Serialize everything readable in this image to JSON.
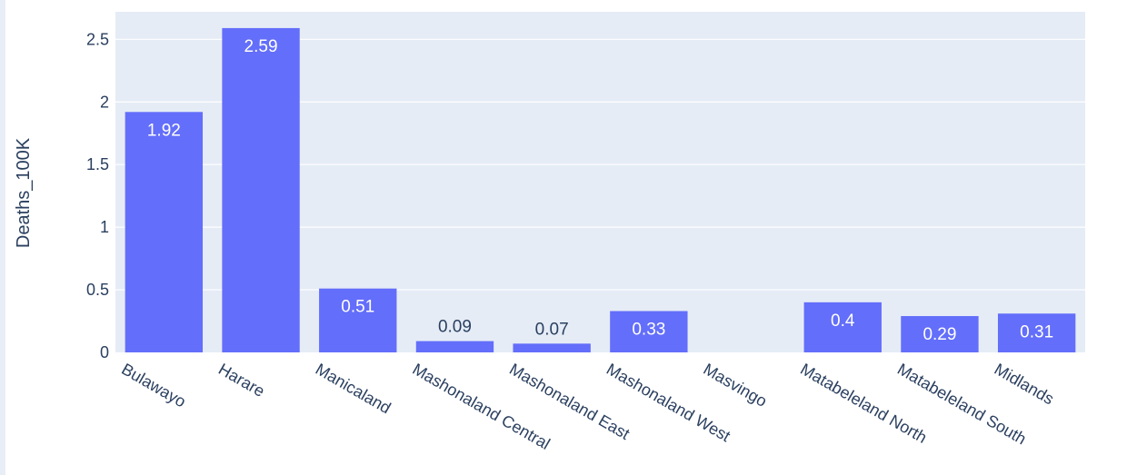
{
  "chart_data": {
    "type": "bar",
    "categories": [
      "Bulawayo",
      "Harare",
      "Manicaland",
      "Mashonaland Central",
      "Mashonaland East",
      "Mashonaland West",
      "Masvingo",
      "Matabeleland North",
      "Matabeleland South",
      "Midlands"
    ],
    "values": [
      1.92,
      2.59,
      0.51,
      0.09,
      0.07,
      0.33,
      0.0,
      0.4,
      0.29,
      0.31
    ],
    "data_labels": [
      "1.92",
      "2.59",
      "0.51",
      "0.09",
      "0.07",
      "0.33",
      "",
      "0.4",
      "0.29",
      "0.31"
    ],
    "ylabel": "Deaths_100K",
    "ylim": [
      0,
      2.72
    ],
    "yticks": [
      0,
      0.5,
      1,
      1.5,
      2,
      2.5
    ],
    "ytick_labels": [
      "0",
      "0.5",
      "1",
      "1.5",
      "2",
      "2.5"
    ],
    "grid": true,
    "colors": {
      "bar": "#636efa",
      "plot_bg": "#e5ecf6",
      "grid": "#ffffff",
      "text": "#2a3f5f",
      "label_inside": "#ffffff",
      "label_outside": "#2a3f5f"
    }
  }
}
